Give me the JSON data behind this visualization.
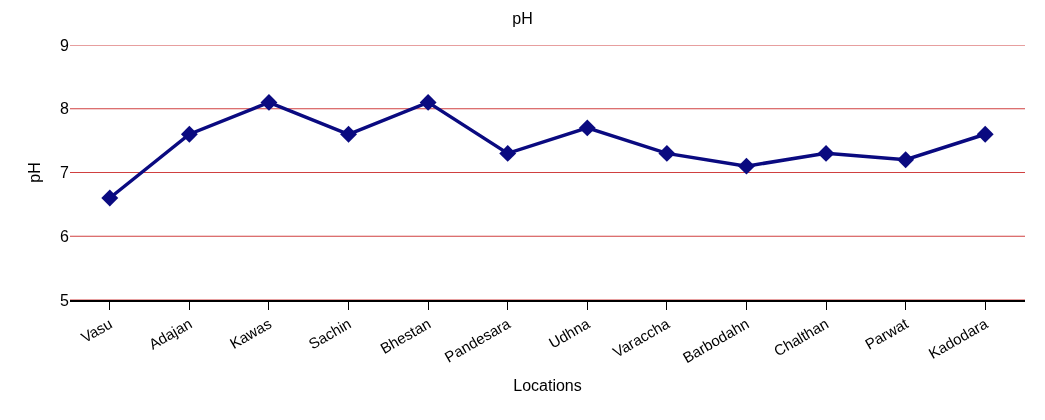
{
  "chart_data": {
    "type": "line",
    "title": "pH",
    "xlabel": "Locations",
    "ylabel": "pH",
    "categories": [
      "Vasu",
      "Adajan",
      "Kawas",
      "Sachin",
      "Bhestan",
      "Pandesara",
      "Udhna",
      "Varaccha",
      "Barbodahn",
      "Chalthan",
      "Parwat",
      "Kadodara"
    ],
    "series": [
      {
        "color": "#0a0a80",
        "values": [
          6.6,
          7.6,
          8.1,
          7.6,
          8.1,
          7.3,
          7.7,
          7.3,
          7.1,
          7.3,
          7.2,
          7.6
        ]
      }
    ],
    "ylim": [
      5,
      9
    ],
    "yticks": [
      5,
      6,
      7,
      8,
      9
    ],
    "grid": "y",
    "marker": "diamond",
    "line_style": "solid"
  }
}
